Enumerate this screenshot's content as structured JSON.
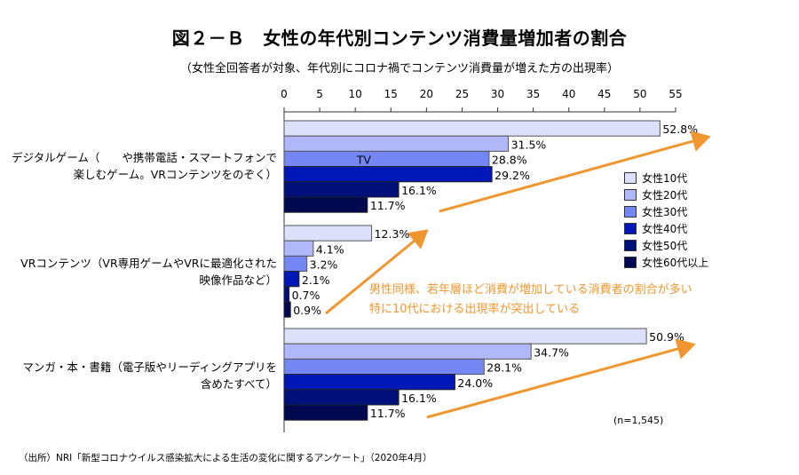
{
  "chart_data": {
    "type": "bar",
    "orientation": "horizontal",
    "title": "図２－Ｂ　女性の年代別コンテンツ消費量増加者の割合",
    "subtitle": "（女性全回答者が対象、年代別にコロナ禍でコンテンツ消費量が増えた方の出現率）",
    "xlabel": "",
    "ylabel": "",
    "xlim": [
      0,
      55
    ],
    "xticks": [
      "0",
      "5",
      "10",
      "15",
      "20",
      "25",
      "30",
      "35",
      "40",
      "45",
      "50",
      "55"
    ],
    "xtick_values": [
      0,
      5,
      10,
      15,
      20,
      25,
      30,
      35,
      40,
      45,
      50,
      55
    ],
    "axis_position": "top",
    "grid": false,
    "categories": [
      [
        "デジタルゲーム（　　や携帯電話・スマートフォンで",
        "楽しむゲーム。VRコンテンツをのぞく）"
      ],
      [
        "VRコンテンツ（VR専用ゲームやVRに最適化された",
        "映像作品など）"
      ],
      [
        "マンガ・本・書籍（電子版やリーディングアプリを",
        "含めたすべて）"
      ]
    ],
    "series": [
      {
        "name": "女性10代",
        "color": "#dde0fb",
        "values": [
          52.8,
          12.3,
          50.9
        ],
        "labels": [
          "52.8%",
          "12.3%",
          "50.9%"
        ]
      },
      {
        "name": "女性20代",
        "color": "#b1b8fa",
        "values": [
          31.5,
          4.1,
          34.7
        ],
        "labels": [
          "31.5%",
          "4.1%",
          "34.7%"
        ]
      },
      {
        "name": "女性30代",
        "color": "#7587f5",
        "values": [
          28.8,
          3.2,
          28.1
        ],
        "labels": [
          "28.8%",
          "3.2%",
          "28.1%"
        ]
      },
      {
        "name": "女性40代",
        "color": "#0018b8",
        "values": [
          29.2,
          2.1,
          24.0
        ],
        "labels": [
          "29.2%",
          "2.1%",
          "24.0%"
        ]
      },
      {
        "name": "女性50代",
        "color": "#000f7a",
        "values": [
          16.1,
          0.7,
          16.1
        ],
        "labels": [
          "16.1%",
          "0.7%",
          "16.1%"
        ]
      },
      {
        "name": "女性60代以上",
        "color": "#00084f",
        "values": [
          11.7,
          0.9,
          11.7
        ],
        "labels": [
          "11.7%",
          "0.9%",
          "11.7%"
        ]
      }
    ],
    "inbar_text": "TV",
    "legend_position": "right",
    "arrow_color": "#f0962e",
    "annotations": [
      "男性同様、若年層ほど消費が増加している消費者の割合が多い",
      "特に10代における出現率が突出している"
    ],
    "note": "(n=1,545)"
  },
  "source": "（出所）NRI「新型コロナウイルス感染拡大による生活の変化に関するアンケート」（2020年4月）"
}
